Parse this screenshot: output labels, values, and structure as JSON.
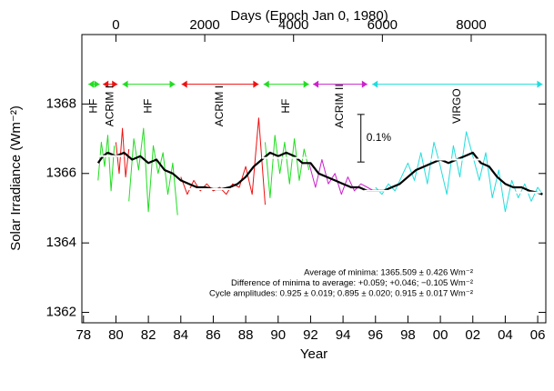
{
  "chart_data": {
    "type": "line",
    "x_label": "Year",
    "x2_label": "Days (Epoch Jan 0, 1980)",
    "y_label": "Solar Irradiance (Wm⁻²)",
    "xlim": [
      1977.9,
      2006.5
    ],
    "xticks": [
      {
        "value": 1978,
        "label": "78"
      },
      {
        "value": 1980,
        "label": "80"
      },
      {
        "value": 1982,
        "label": "82"
      },
      {
        "value": 1984,
        "label": "84"
      },
      {
        "value": 1986,
        "label": "86"
      },
      {
        "value": 1988,
        "label": "88"
      },
      {
        "value": 1990,
        "label": "90"
      },
      {
        "value": 1992,
        "label": "92"
      },
      {
        "value": 1994,
        "label": "94"
      },
      {
        "value": 1996,
        "label": "96"
      },
      {
        "value": 1998,
        "label": "98"
      },
      {
        "value": 2000,
        "label": "00"
      },
      {
        "value": 2002,
        "label": "02"
      },
      {
        "value": 2004,
        "label": "04"
      },
      {
        "value": 2006,
        "label": "06"
      }
    ],
    "x2lim": [
      -767,
      9680
    ],
    "x2ticks": [
      0,
      2000,
      4000,
      6000,
      8000
    ],
    "ylim": [
      1361.7,
      1370
    ],
    "yticks": [
      1362,
      1364,
      1366,
      1368
    ],
    "series": [
      {
        "color": "#22dd22",
        "x": [
          1978.9,
          1979.1,
          1979.3,
          1979.5,
          1979.7,
          1979.9
        ],
        "values": [
          1365.8,
          1366.9,
          1366.2,
          1367.1,
          1365.5,
          1366.8
        ]
      },
      {
        "color": "#ee1111",
        "x": [
          1980.0,
          1980.2,
          1980.4,
          1980.6,
          1980.8
        ],
        "values": [
          1366.9,
          1366.0,
          1367.3,
          1365.9,
          1366.7
        ]
      },
      {
        "color": "#22dd22",
        "x": [
          1980.8,
          1981.1,
          1981.4,
          1981.7,
          1982.0,
          1982.3,
          1982.6,
          1982.9,
          1983.2,
          1983.5,
          1983.8
        ],
        "values": [
          1365.2,
          1367.0,
          1366.1,
          1367.3,
          1364.9,
          1366.8,
          1366.0,
          1366.6,
          1365.4,
          1366.3,
          1364.8
        ]
      },
      {
        "color": "#ee1111",
        "x": [
          1984.0,
          1984.4,
          1984.8,
          1985.2,
          1985.6,
          1986.0,
          1986.4,
          1986.8,
          1987.2,
          1987.6,
          1988.0,
          1988.4,
          1988.8,
          1989.2
        ],
        "values": [
          1365.9,
          1365.4,
          1365.8,
          1365.5,
          1365.7,
          1365.5,
          1365.6,
          1365.4,
          1365.7,
          1365.6,
          1366.2,
          1365.4,
          1367.6,
          1365.1
        ]
      },
      {
        "color": "#22dd22",
        "x": [
          1989.2,
          1989.5,
          1989.8,
          1990.1,
          1990.4,
          1990.7,
          1991.0,
          1991.3,
          1991.6,
          1991.9
        ],
        "values": [
          1366.9,
          1365.3,
          1367.1,
          1366.0,
          1366.9,
          1365.7,
          1367.0,
          1365.8,
          1366.7,
          1366.1
        ]
      },
      {
        "color": "#cc22cc",
        "x": [
          1991.9,
          1992.3,
          1992.7,
          1993.1,
          1993.5,
          1993.9,
          1994.3,
          1994.7,
          1995.1,
          1995.5,
          1995.9
        ],
        "values": [
          1366.3,
          1365.6,
          1366.4,
          1365.7,
          1366.0,
          1365.4,
          1365.9,
          1365.5,
          1365.7,
          1365.6,
          1365.5
        ]
      },
      {
        "color": "#22dddd",
        "x": [
          1996.0,
          1996.4,
          1996.8,
          1997.2,
          1997.6,
          1998.0,
          1998.4,
          1998.8,
          1999.2,
          1999.6,
          2000.0,
          2000.4,
          2000.8,
          2001.2,
          2001.6,
          2002.0,
          2002.4,
          2002.8,
          2003.2,
          2003.6,
          2004.0,
          2004.4,
          2004.8,
          2005.2,
          2005.6,
          2006.0,
          2006.3
        ],
        "values": [
          1365.6,
          1365.4,
          1365.7,
          1365.5,
          1365.9,
          1366.3,
          1365.8,
          1366.6,
          1365.7,
          1366.9,
          1366.2,
          1365.4,
          1366.8,
          1365.9,
          1367.2,
          1366.5,
          1365.8,
          1366.6,
          1365.3,
          1366.1,
          1364.9,
          1365.8,
          1365.3,
          1365.7,
          1365.2,
          1365.6,
          1365.4
        ]
      },
      {
        "color": "#000000",
        "line_width": 2.2,
        "x": [
          1978.9,
          1979.2,
          1979.5,
          1980,
          1980.5,
          1981,
          1981.5,
          1982,
          1982.5,
          1983,
          1983.5,
          1984,
          1984.5,
          1985,
          1985.5,
          1986,
          1986.5,
          1987,
          1987.5,
          1988,
          1988.5,
          1989,
          1989.5,
          1990,
          1990.5,
          1991,
          1991.5,
          1992,
          1992.5,
          1993,
          1993.5,
          1994,
          1994.5,
          1995,
          1995.5,
          1996,
          1996.5,
          1997,
          1997.5,
          1998,
          1998.5,
          1999,
          1999.5,
          2000,
          2000.5,
          2001,
          2001.5,
          2002,
          2002.5,
          2003,
          2003.5,
          2004,
          2004.5,
          2005,
          2005.5,
          2006,
          2006.3
        ],
        "values": [
          1366.3,
          1366.5,
          1366.6,
          1366.5,
          1366.6,
          1366.4,
          1366.5,
          1366.3,
          1366.4,
          1366.1,
          1366.0,
          1365.8,
          1365.7,
          1365.6,
          1365.6,
          1365.55,
          1365.55,
          1365.6,
          1365.7,
          1365.9,
          1366.2,
          1366.4,
          1366.6,
          1366.5,
          1366.6,
          1366.5,
          1366.3,
          1366.3,
          1366.0,
          1365.9,
          1365.8,
          1365.7,
          1365.6,
          1365.6,
          1365.5,
          1365.5,
          1365.5,
          1365.6,
          1365.7,
          1365.9,
          1366.1,
          1366.2,
          1366.3,
          1366.4,
          1366.3,
          1366.4,
          1366.5,
          1366.6,
          1366.3,
          1366.2,
          1365.9,
          1365.7,
          1365.6,
          1365.6,
          1365.5,
          1365.45,
          1365.4
        ]
      }
    ],
    "levels": [
      {
        "start": 1978.6,
        "end": 1980.5,
        "value": 1366.5
      },
      {
        "start": 1984.5,
        "end": 1987.6,
        "value": 1365.55
      },
      {
        "start": 1989.0,
        "end": 1991.8,
        "value": 1366.45
      },
      {
        "start": 1995.3,
        "end": 1997.0,
        "value": 1365.5
      },
      {
        "start": 1999.2,
        "end": 2002.6,
        "value": 1366.4
      },
      {
        "start": 2004.6,
        "end": 2006.2,
        "value": 1365.45
      }
    ],
    "periods_level": 1368.57,
    "periods": [
      {
        "label": "HF",
        "start": 1978.3,
        "end": 1979.0,
        "color": "#22dd22"
      },
      {
        "label": "ACRIM I",
        "start": 1979.2,
        "end": 1980.1,
        "color": "#ee1111"
      },
      {
        "label": "HF",
        "start": 1980.4,
        "end": 1983.65,
        "color": "#22dd22"
      },
      {
        "label": "ACRIM I",
        "start": 1984.05,
        "end": 1988.8,
        "color": "#ee1111"
      },
      {
        "label": "HF",
        "start": 1989.1,
        "end": 1991.9,
        "color": "#22dd22"
      },
      {
        "label": "ACRIM II",
        "start": 1992.15,
        "end": 1995.5,
        "color": "#cc22cc"
      },
      {
        "label": "VIRGO",
        "start": 1995.8,
        "end": 2006.3,
        "color": "#22dddd"
      }
    ],
    "scale_bar": {
      "x": 1995.1,
      "from": 1366.33,
      "to": 1367.7,
      "label": "0.1%"
    },
    "annotations": [
      "Average of minima:  1365.509 ± 0.426 Wm⁻²",
      "Difference of minima to average: +0.059; +0.046; −0.105 Wm⁻²",
      "Cycle amplitudes:  0.925 ± 0.019; 0.895 ± 0.020; 0.915 ± 0.017 Wm⁻²"
    ]
  }
}
